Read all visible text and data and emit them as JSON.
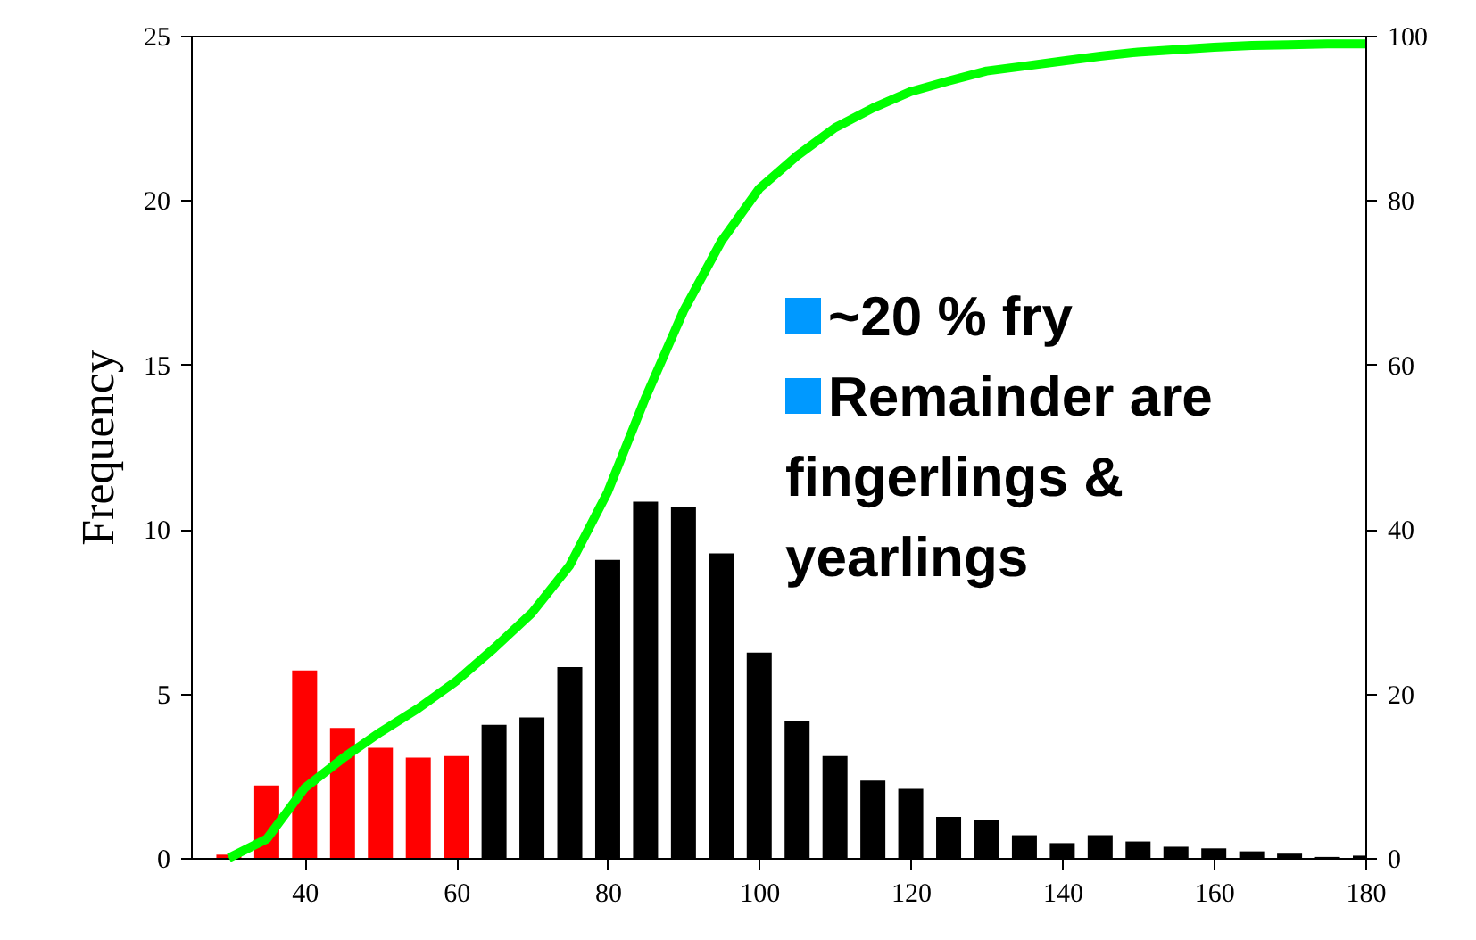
{
  "chart_data": {
    "type": "bar",
    "ylabel": "Frequency",
    "x": [
      30,
      35,
      40,
      45,
      50,
      55,
      60,
      65,
      70,
      75,
      80,
      85,
      90,
      95,
      100,
      105,
      110,
      115,
      120,
      125,
      130,
      135,
      140,
      145,
      150,
      155,
      160,
      165,
      170,
      175,
      180
    ],
    "series": [
      {
        "colors": [
          "#ff0000",
          "#ff0000",
          "#ff0000",
          "#ff0000",
          "#ff0000",
          "#ff0000",
          "#ff0000",
          "#000000",
          "#000000",
          "#000000",
          "#000000",
          "#000000",
          "#000000",
          "#000000",
          "#000000",
          "#000000",
          "#000000",
          "#000000",
          "#000000",
          "#000000",
          "#000000",
          "#000000",
          "#000000",
          "#000000",
          "#000000",
          "#000000",
          "#000000",
          "#000000",
          "#000000",
          "#000000",
          "#000000"
        ],
        "values": [
          0.1,
          2.2,
          5.7,
          3.95,
          3.35,
          3.05,
          3.1,
          4.05,
          4.27,
          5.8,
          9.06,
          10.83,
          10.67,
          9.26,
          6.24,
          4.15,
          3.1,
          2.35,
          2.1,
          1.25,
          1.16,
          0.69,
          0.45,
          0.69,
          0.5,
          0.34,
          0.29,
          0.2,
          0.13,
          0.03,
          0.07
        ]
      },
      {
        "type": "line",
        "axis": "y2",
        "color": "#00ff00",
        "values": [
          0,
          2.3,
          8.5,
          12.1,
          15.3,
          18.2,
          21.5,
          25.5,
          29.8,
          35.6,
          44.5,
          56,
          66.5,
          75,
          81.4,
          85.4,
          88.8,
          91.2,
          93.2,
          94.5,
          95.7,
          96.3,
          96.9,
          97.5,
          98,
          98.3,
          98.6,
          98.8,
          98.9,
          99,
          99
        ]
      }
    ],
    "xlim": [
      25,
      180
    ],
    "xticks": [
      40,
      60,
      80,
      100,
      120,
      140,
      160,
      180
    ],
    "ylim": [
      0,
      25
    ],
    "yticks": [
      0,
      5,
      10,
      15,
      20,
      25
    ],
    "y2lim": [
      0,
      100
    ],
    "y2ticks": [
      0,
      20,
      40,
      60,
      80,
      100
    ],
    "annotations": [
      "~20 % fry",
      "Remainder are fingerlings & yearlings"
    ]
  }
}
